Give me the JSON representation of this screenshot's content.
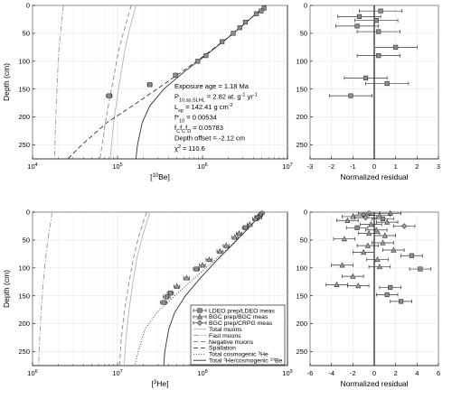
{
  "chart_data": [
    {
      "type": "line",
      "id": "be_profile",
      "xscale": "log",
      "xlim": [
        10000,
        10000000
      ],
      "ylim": [
        275,
        0
      ],
      "xlabel_parts": [
        "[",
        "10",
        "Be]"
      ],
      "ylabel": "Depth (cm)",
      "xticks": [
        {
          "v": 10000,
          "base": "10",
          "exp": "4"
        },
        {
          "v": 100000,
          "base": "10",
          "exp": "5"
        },
        {
          "v": 1000000,
          "base": "10",
          "exp": "6"
        },
        {
          "v": 10000000,
          "base": "10",
          "exp": "7"
        }
      ],
      "yticks": [
        0,
        50,
        100,
        150,
        200,
        250
      ],
      "grid": true,
      "series": [
        {
          "style": "dashdot",
          "color": "#9a9a9a",
          "x": [
            23000,
            22000,
            21000,
            20000,
            19500,
            19000,
            18500,
            18200
          ],
          "y": [
            0,
            30,
            60,
            100,
            140,
            180,
            230,
            275
          ]
        },
        {
          "style": "dashed",
          "color": "#8a8a8a",
          "x": [
            145000,
            122000,
            103000,
            90000,
            80000,
            72000,
            66000,
            62000
          ],
          "y": [
            0,
            40,
            80,
            130,
            170,
            210,
            250,
            275
          ]
        },
        {
          "style": "solid",
          "color": "#b4b4b4",
          "x": [
            165000,
            140000,
            122000,
            108000,
            98000,
            90000,
            85000,
            82000
          ],
          "y": [
            0,
            40,
            80,
            130,
            170,
            210,
            250,
            275
          ]
        },
        {
          "style": "dashed",
          "color": "#333333",
          "x": [
            5500000,
            3300000,
            1900000,
            1050000,
            560000,
            290000,
            150000,
            75000,
            38000,
            26000
          ],
          "y": [
            0,
            30,
            60,
            90,
            120,
            150,
            180,
            210,
            250,
            275
          ]
        },
        {
          "style": "solid",
          "color": "#333333",
          "x": [
            5500000,
            3300000,
            1920000,
            1080000,
            600000,
            350000,
            240000,
            195000,
            172000,
            165000
          ],
          "y": [
            0,
            30,
            60,
            90,
            120,
            150,
            180,
            210,
            250,
            275
          ]
        }
      ],
      "points": [
        {
          "x": 5300000,
          "y": 5,
          "err": 150000
        },
        {
          "x": 4900000,
          "y": 10,
          "err": 150000
        },
        {
          "x": 4300000,
          "y": 15,
          "err": 150000
        },
        {
          "x": 3200000,
          "y": 30,
          "err": 120000
        },
        {
          "x": 2750000,
          "y": 40,
          "err": 100000
        },
        {
          "x": 2300000,
          "y": 50,
          "err": 90000
        },
        {
          "x": 1700000,
          "y": 65,
          "err": 70000
        },
        {
          "x": 1100000,
          "y": 90,
          "err": 50000
        },
        {
          "x": 880000,
          "y": 100,
          "err": 40000
        },
        {
          "x": 480000,
          "y": 125,
          "err": 25000
        },
        {
          "x": 240000,
          "y": 142,
          "err": 15000
        },
        {
          "x": 80000,
          "y": 162,
          "err": 6000
        }
      ],
      "annotations": [
        {
          "parts": [
            [
              "Exposure age = 1.18 Ma",
              "n"
            ]
          ]
        },
        {
          "parts": [
            [
              "P",
              "n"
            ],
            [
              "10,sp,SLHL",
              "sub"
            ],
            [
              " = 2.82 at. g",
              "n"
            ],
            [
              "-1",
              "sup"
            ],
            [
              " yr",
              "n"
            ],
            [
              "-1",
              "sup"
            ]
          ]
        },
        {
          "parts": [
            [
              "L",
              "n"
            ],
            [
              "sp",
              "sub"
            ],
            [
              " = 142.41 g cm",
              "n"
            ],
            [
              "-2",
              "sup"
            ]
          ]
        },
        {
          "parts": [
            [
              "f*",
              "n"
            ],
            [
              "10",
              "sub"
            ],
            [
              " = 0.00534",
              "n"
            ]
          ]
        },
        {
          "parts": [
            [
              "f",
              "n"
            ],
            [
              "C",
              "sub"
            ],
            [
              "f",
              "n"
            ],
            [
              "C",
              "sub"
            ],
            [
              "f",
              "n"
            ],
            [
              "D",
              "sub"
            ],
            [
              " = 0.05783",
              "n"
            ]
          ]
        },
        {
          "parts": [
            [
              "Depth offset = -2.12 cm",
              "n"
            ]
          ]
        },
        {
          "parts": [
            [
              "χ",
              "n"
            ],
            [
              "2",
              "sup"
            ],
            [
              " = 110.6",
              "n"
            ]
          ]
        }
      ]
    },
    {
      "type": "scatter",
      "id": "be_residual",
      "xlim": [
        -3,
        3
      ],
      "ylim": [
        275,
        0
      ],
      "xlabel": "Normalized residual",
      "xticks": [
        "-3",
        "-2",
        "-1",
        "0",
        "1",
        "2",
        "3"
      ],
      "yticks": [
        0,
        50,
        100,
        150,
        200,
        250
      ],
      "points": [
        {
          "x": 0.3,
          "y": 10,
          "err": 1.0
        },
        {
          "x": -0.7,
          "y": 20,
          "err": 1.0
        },
        {
          "x": 0.1,
          "y": 27,
          "err": 1.0
        },
        {
          "x": -0.8,
          "y": 37,
          "err": 1.0
        },
        {
          "x": 0.2,
          "y": 47,
          "err": 1.0
        },
        {
          "x": 1.0,
          "y": 75,
          "err": 1.0
        },
        {
          "x": 0.2,
          "y": 90,
          "err": 1.0
        },
        {
          "x": -0.4,
          "y": 130,
          "err": 1.0
        },
        {
          "x": 0.6,
          "y": 140,
          "err": 1.0
        },
        {
          "x": -1.1,
          "y": 162,
          "err": 1.0
        }
      ]
    },
    {
      "type": "line",
      "id": "he_profile",
      "xscale": "log",
      "xlim": [
        1000000,
        1000000000
      ],
      "ylim": [
        275,
        0
      ],
      "xlabel_parts": [
        "[",
        "3",
        "He]"
      ],
      "ylabel": "Depth (cm)",
      "xticks": [
        {
          "v": 1000000,
          "base": "10",
          "exp": "6"
        },
        {
          "v": 10000000,
          "base": "10",
          "exp": "7"
        },
        {
          "v": 100000000,
          "base": "10",
          "exp": "8"
        },
        {
          "v": 1000000000,
          "base": "10",
          "exp": "9"
        }
      ],
      "yticks": [
        0,
        50,
        100,
        150,
        200,
        250
      ],
      "grid": true,
      "series": [
        {
          "style": "dashdot",
          "color": "#9a9a9a",
          "x": [
            1700000,
            1550000,
            1430000,
            1330000,
            1260000,
            1210000,
            1180000
          ],
          "y": [
            0,
            40,
            80,
            130,
            180,
            230,
            275
          ]
        },
        {
          "style": "dashed",
          "color": "#8a8a8a",
          "x": [
            22000000,
            18000000,
            15500000,
            13500000,
            12000000,
            11000000,
            10600000
          ],
          "y": [
            0,
            40,
            80,
            130,
            180,
            230,
            275
          ]
        },
        {
          "style": "solid",
          "color": "#b4b4b4",
          "x": [
            24000000,
            20000000,
            17000000,
            15000000,
            13500000,
            12500000,
            12000000
          ],
          "y": [
            0,
            40,
            80,
            130,
            180,
            230,
            275
          ]
        },
        {
          "style": "dotted",
          "color": "#333333",
          "x": [
            520000000,
            340000000,
            215000000,
            130000000,
            78000000,
            47000000,
            29000000,
            21000000,
            17500000,
            16000000
          ],
          "y": [
            0,
            30,
            60,
            90,
            120,
            150,
            180,
            210,
            250,
            275
          ]
        },
        {
          "style": "solid",
          "color": "#333333",
          "x": [
            520000000,
            340000000,
            220000000,
            140000000,
            92000000,
            63000000,
            47000000,
            40000000,
            36000000,
            35000000
          ],
          "y": [
            0,
            30,
            60,
            90,
            120,
            150,
            180,
            210,
            250,
            275
          ]
        }
      ],
      "points": [
        {
          "x": 500000000,
          "y": 2,
          "err": 30000000,
          "m": "diamond"
        },
        {
          "x": 480000000,
          "y": 5,
          "err": 30000000,
          "m": "diamond"
        },
        {
          "x": 470000000,
          "y": 8,
          "err": 30000000,
          "m": "triangle"
        },
        {
          "x": 440000000,
          "y": 10,
          "err": 30000000,
          "m": "square"
        },
        {
          "x": 420000000,
          "y": 12,
          "err": 30000000,
          "m": "triangle"
        },
        {
          "x": 360000000,
          "y": 22,
          "err": 25000000,
          "m": "triangle"
        },
        {
          "x": 320000000,
          "y": 28,
          "err": 25000000,
          "m": "square"
        },
        {
          "x": 270000000,
          "y": 38,
          "err": 20000000,
          "m": "triangle"
        },
        {
          "x": 240000000,
          "y": 45,
          "err": 20000000,
          "m": "triangle"
        },
        {
          "x": 190000000,
          "y": 60,
          "err": 15000000,
          "m": "triangle"
        },
        {
          "x": 160000000,
          "y": 70,
          "err": 12000000,
          "m": "triangle"
        },
        {
          "x": 120000000,
          "y": 85,
          "err": 10000000,
          "m": "triangle"
        },
        {
          "x": 100000000,
          "y": 95,
          "err": 8000000,
          "m": "triangle"
        },
        {
          "x": 85000000,
          "y": 102,
          "err": 7000000,
          "m": "square"
        },
        {
          "x": 65000000,
          "y": 118,
          "err": 5000000,
          "m": "triangle"
        },
        {
          "x": 50000000,
          "y": 133,
          "err": 4000000,
          "m": "triangle"
        },
        {
          "x": 42000000,
          "y": 145,
          "err": 3500000,
          "m": "square"
        },
        {
          "x": 38000000,
          "y": 152,
          "err": 3500000,
          "m": "square"
        },
        {
          "x": 35000000,
          "y": 162,
          "err": 3000000,
          "m": "square"
        }
      ],
      "legend": {
        "placement": "lower-right",
        "entries": [
          {
            "label": "LDEO prep/LDEO meas",
            "sample": "marker",
            "m": "square"
          },
          {
            "label": "BGC prep/BGC meas",
            "sample": "marker",
            "m": "triangle"
          },
          {
            "label": "BGC prep/CRPG meas",
            "sample": "marker",
            "m": "diamond"
          },
          {
            "label": "Total muons",
            "sample": "line",
            "style": "solid",
            "color": "#b4b4b4"
          },
          {
            "label": "Fast muons",
            "sample": "line",
            "style": "dashdot",
            "color": "#9a9a9a"
          },
          {
            "label": "Negative muons",
            "sample": "line",
            "style": "dashed",
            "color": "#8a8a8a"
          },
          {
            "label": "Spallation",
            "sample": "line",
            "style": "dashed",
            "color": "#333333"
          },
          {
            "label": "Total cosmogenic 3He",
            "pre": "Total cosmogenic ",
            "sup": "3",
            "post": "He",
            "sample": "line",
            "style": "dotted",
            "color": "#333333"
          },
          {
            "label": "Total 3He/cosmogenic 10Be",
            "pre": "Total ",
            "sup": "3",
            "post": "He/cosmogenic ",
            "sup2": "10",
            "post2": "Be",
            "sample": "line",
            "style": "solid",
            "color": "#333333"
          }
        ]
      }
    },
    {
      "type": "scatter",
      "id": "he_residual",
      "xlim": [
        -6,
        6
      ],
      "ylim": [
        275,
        0
      ],
      "xlabel": "Normalized residual",
      "xticks": [
        "-6",
        "-4",
        "-2",
        "0",
        "2",
        "4",
        "6"
      ],
      "yticks": [
        0,
        50,
        100,
        150,
        200,
        250
      ],
      "points": [
        {
          "x": -0.5,
          "y": 2,
          "err": 1.0,
          "m": "diamond"
        },
        {
          "x": 1.5,
          "y": 2,
          "err": 1.0,
          "m": "triangle"
        },
        {
          "x": -1.0,
          "y": 5,
          "err": 1.0,
          "m": "diamond"
        },
        {
          "x": 0.5,
          "y": 6,
          "err": 1.0,
          "m": "triangle"
        },
        {
          "x": -2.0,
          "y": 8,
          "err": 1.0,
          "m": "triangle"
        },
        {
          "x": -0.8,
          "y": 10,
          "err": 1.0,
          "m": "diamond"
        },
        {
          "x": 0.8,
          "y": 12,
          "err": 1.0,
          "m": "square"
        },
        {
          "x": -2.5,
          "y": 15,
          "err": 1.0,
          "m": "triangle"
        },
        {
          "x": 1.2,
          "y": 18,
          "err": 1.0,
          "m": "triangle"
        },
        {
          "x": -0.3,
          "y": 22,
          "err": 1.0,
          "m": "triangle"
        },
        {
          "x": 2.8,
          "y": 25,
          "err": 1.0,
          "m": "diamond"
        },
        {
          "x": -1.6,
          "y": 28,
          "err": 1.0,
          "m": "square"
        },
        {
          "x": 0.2,
          "y": 32,
          "err": 1.0,
          "m": "triangle"
        },
        {
          "x": -0.5,
          "y": 38,
          "err": 1.0,
          "m": "triangle"
        },
        {
          "x": 1.0,
          "y": 42,
          "err": 1.0,
          "m": "triangle"
        },
        {
          "x": -2.8,
          "y": 48,
          "err": 1.0,
          "m": "triangle"
        },
        {
          "x": 0.8,
          "y": 55,
          "err": 1.0,
          "m": "triangle"
        },
        {
          "x": -0.6,
          "y": 60,
          "err": 1.0,
          "m": "triangle"
        },
        {
          "x": 1.8,
          "y": 68,
          "err": 1.0,
          "m": "triangle"
        },
        {
          "x": -1.0,
          "y": 72,
          "err": 1.0,
          "m": "triangle"
        },
        {
          "x": 3.5,
          "y": 78,
          "err": 1.0,
          "m": "square"
        },
        {
          "x": 0.3,
          "y": 85,
          "err": 1.0,
          "m": "triangle"
        },
        {
          "x": -3.0,
          "y": 95,
          "err": 1.0,
          "m": "triangle"
        },
        {
          "x": 0.5,
          "y": 98,
          "err": 1.0,
          "m": "triangle"
        },
        {
          "x": 4.3,
          "y": 102,
          "err": 1.0,
          "m": "square"
        },
        {
          "x": -2.0,
          "y": 115,
          "err": 1.0,
          "m": "triangle"
        },
        {
          "x": -3.5,
          "y": 130,
          "err": 1.0,
          "m": "triangle"
        },
        {
          "x": -1.5,
          "y": 132,
          "err": 1.0,
          "m": "triangle"
        },
        {
          "x": 1.5,
          "y": 135,
          "err": 1.0,
          "m": "square"
        },
        {
          "x": 1.2,
          "y": 148,
          "err": 1.0,
          "m": "square"
        },
        {
          "x": 2.5,
          "y": 160,
          "err": 1.0,
          "m": "square"
        }
      ]
    }
  ]
}
